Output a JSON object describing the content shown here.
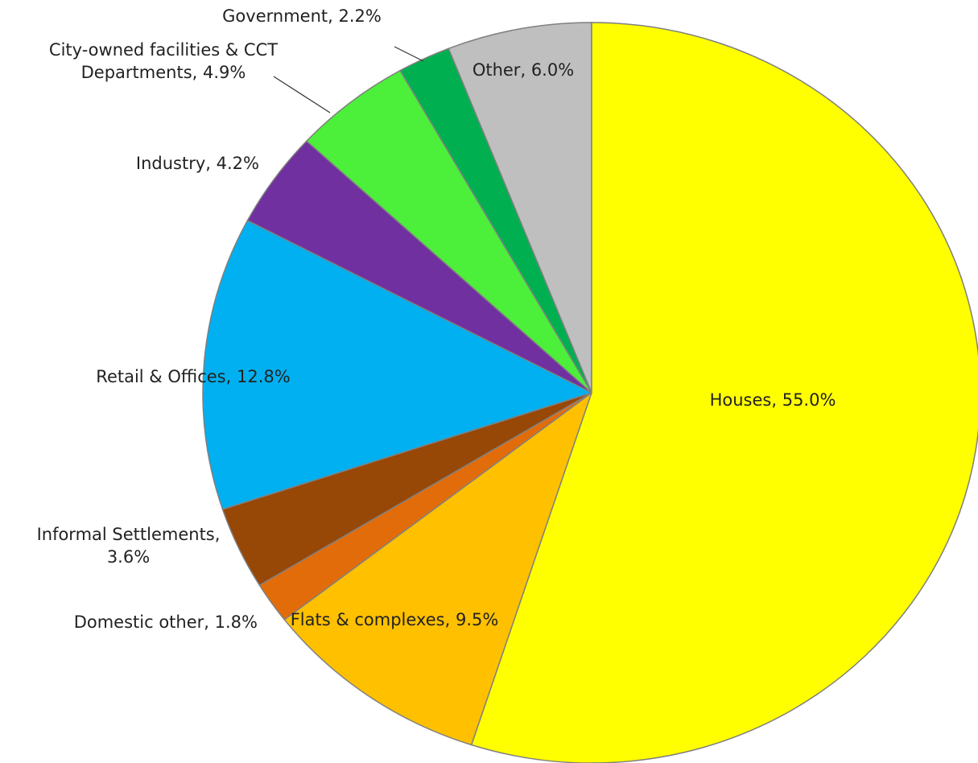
{
  "chart_data": {
    "type": "pie",
    "categories": [
      "Houses,",
      "Flats & complexes,",
      "Domestic other,",
      "Informal Settlements,",
      "Retail & Offices,",
      "Industry,",
      "City-owned facilities & CCT Departments,",
      "Government,",
      "Other,"
    ],
    "values": [
      55.0,
      9.5,
      1.8,
      3.6,
      12.8,
      4.2,
      4.9,
      2.2,
      6.0
    ],
    "value_labels": [
      "55.0%",
      "9.5%",
      "1.8%",
      "3.6%",
      "12.8%",
      "4.2%",
      "4.9%",
      "2.2%",
      "6.0%"
    ],
    "colors": [
      "#ffff00",
      "#ffc000",
      "#e36c0a",
      "#974706",
      "#00b0f0",
      "#7030a0",
      "#4cef3a",
      "#00b050",
      "#bfbfbf"
    ]
  }
}
